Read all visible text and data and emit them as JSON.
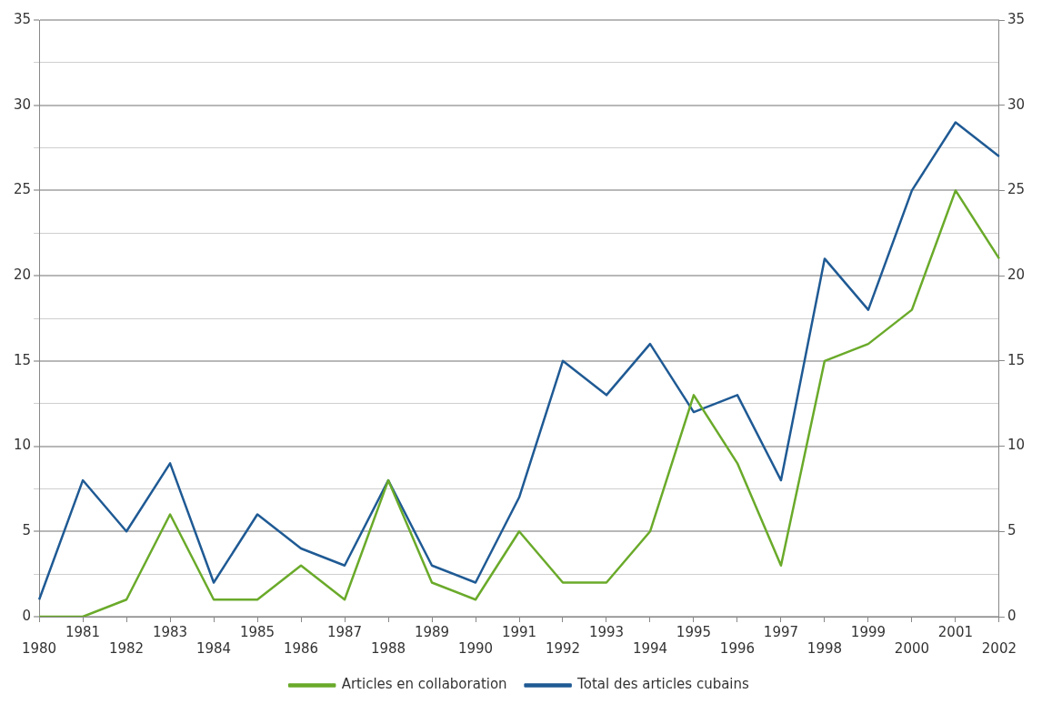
{
  "chart_data": {
    "type": "line",
    "categories": [
      "1980",
      "1981",
      "1982",
      "1983",
      "1984",
      "1985",
      "1986",
      "1987",
      "1988",
      "1989",
      "1990",
      "1991",
      "1992",
      "1993",
      "1994",
      "1995",
      "1996",
      "1997",
      "1998",
      "1999",
      "2000",
      "2001",
      "2002"
    ],
    "series": [
      {
        "name": "Articles en collaboration",
        "color": "#6aaa2a",
        "values": [
          0,
          0,
          1,
          6,
          1,
          1,
          3,
          1,
          8,
          2,
          1,
          5,
          2,
          2,
          5,
          13,
          9,
          3,
          15,
          16,
          18,
          25,
          21
        ]
      },
      {
        "name": "Total des articles cubains",
        "color": "#1f5a94",
        "values": [
          1,
          8,
          5,
          9,
          2,
          6,
          4,
          3,
          8,
          3,
          2,
          7,
          15,
          13,
          16,
          12,
          13,
          8,
          21,
          18,
          25,
          29,
          27
        ]
      }
    ],
    "ylim": [
      0,
      35
    ],
    "yticks": [
      0,
      {
        "value": 2.5,
        "label": null
      },
      5,
      {
        "value": 7.5,
        "label": null
      },
      10,
      {
        "value": 12.5,
        "label": null
      },
      15,
      {
        "value": 17.5,
        "label": null
      },
      20,
      {
        "value": 22.5,
        "label": null
      },
      25,
      {
        "value": 27.5,
        "label": null
      },
      30,
      {
        "value": 32.5,
        "label": null
      },
      35
    ],
    "y2lim": [
      0,
      35
    ],
    "y2ticks": [
      0,
      5,
      10,
      15,
      20,
      25,
      30,
      35
    ],
    "grid": "y",
    "legend": "bottom",
    "marker": "none",
    "line_style": "solid"
  }
}
